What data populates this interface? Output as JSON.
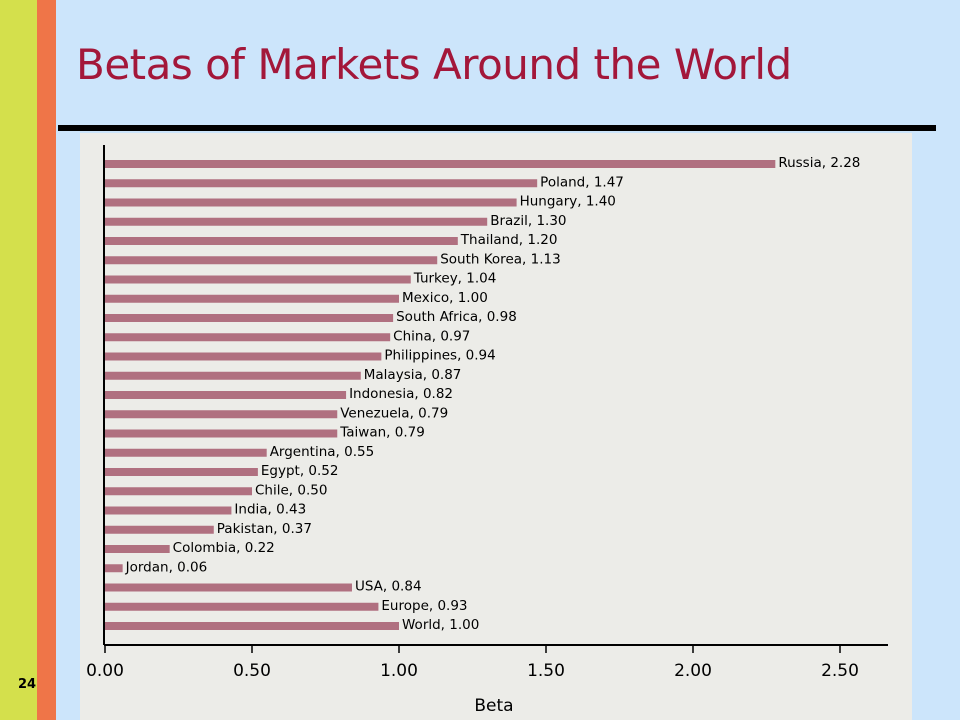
{
  "slide": {
    "title": "Betas of Markets Around the World",
    "page_number": "24"
  },
  "colors": {
    "title": "#a3173a",
    "bar": "#b07080",
    "stripe_green": "#d4e04c",
    "stripe_orange": "#ef7548",
    "background": "#cce5fb",
    "panel": "#ecece8"
  },
  "chart_data": {
    "type": "bar",
    "orientation": "horizontal",
    "title": "",
    "xlabel": "Beta",
    "ylabel": "",
    "xlim": [
      0,
      2.75
    ],
    "x_ticks": [
      "0.00",
      "0.50",
      "1.00",
      "1.50",
      "2.00",
      "2.50"
    ],
    "grid": false,
    "legend": "none",
    "categories": [
      "Russia",
      "Poland",
      "Hungary",
      "Brazil",
      "Thailand",
      "South Korea",
      "Turkey",
      "Mexico",
      "South Africa",
      "China",
      "Philippines",
      "Malaysia",
      "Indonesia",
      "Venezuela",
      "Taiwan",
      "Argentina",
      "Egypt",
      "Chile",
      "India",
      "Pakistan",
      "Colombia",
      "Jordan",
      "USA",
      "Europe",
      "World"
    ],
    "values": [
      2.28,
      1.47,
      1.4,
      1.3,
      1.2,
      1.13,
      1.04,
      1.0,
      0.98,
      0.97,
      0.94,
      0.87,
      0.82,
      0.79,
      0.79,
      0.55,
      0.52,
      0.5,
      0.43,
      0.37,
      0.22,
      0.06,
      0.84,
      0.93,
      1.0
    ],
    "bar_labels": [
      "Russia, 2.28",
      "Poland, 1.47",
      "Hungary, 1.40",
      "Brazil, 1.30",
      "Thailand, 1.20",
      "South Korea, 1.13",
      "Turkey, 1.04",
      "Mexico, 1.00",
      "South Africa, 0.98",
      "China, 0.97",
      "Philippines, 0.94",
      "Malaysia, 0.87",
      "Indonesia, 0.82",
      "Venezuela, 0.79",
      "Taiwan, 0.79",
      "Argentina, 0.55",
      "Egypt, 0.52",
      "Chile, 0.50",
      "India, 0.43",
      "Pakistan, 0.37",
      "Colombia, 0.22",
      "Jordan, 0.06",
      "USA, 0.84",
      "Europe, 0.93",
      "World, 1.00"
    ]
  }
}
